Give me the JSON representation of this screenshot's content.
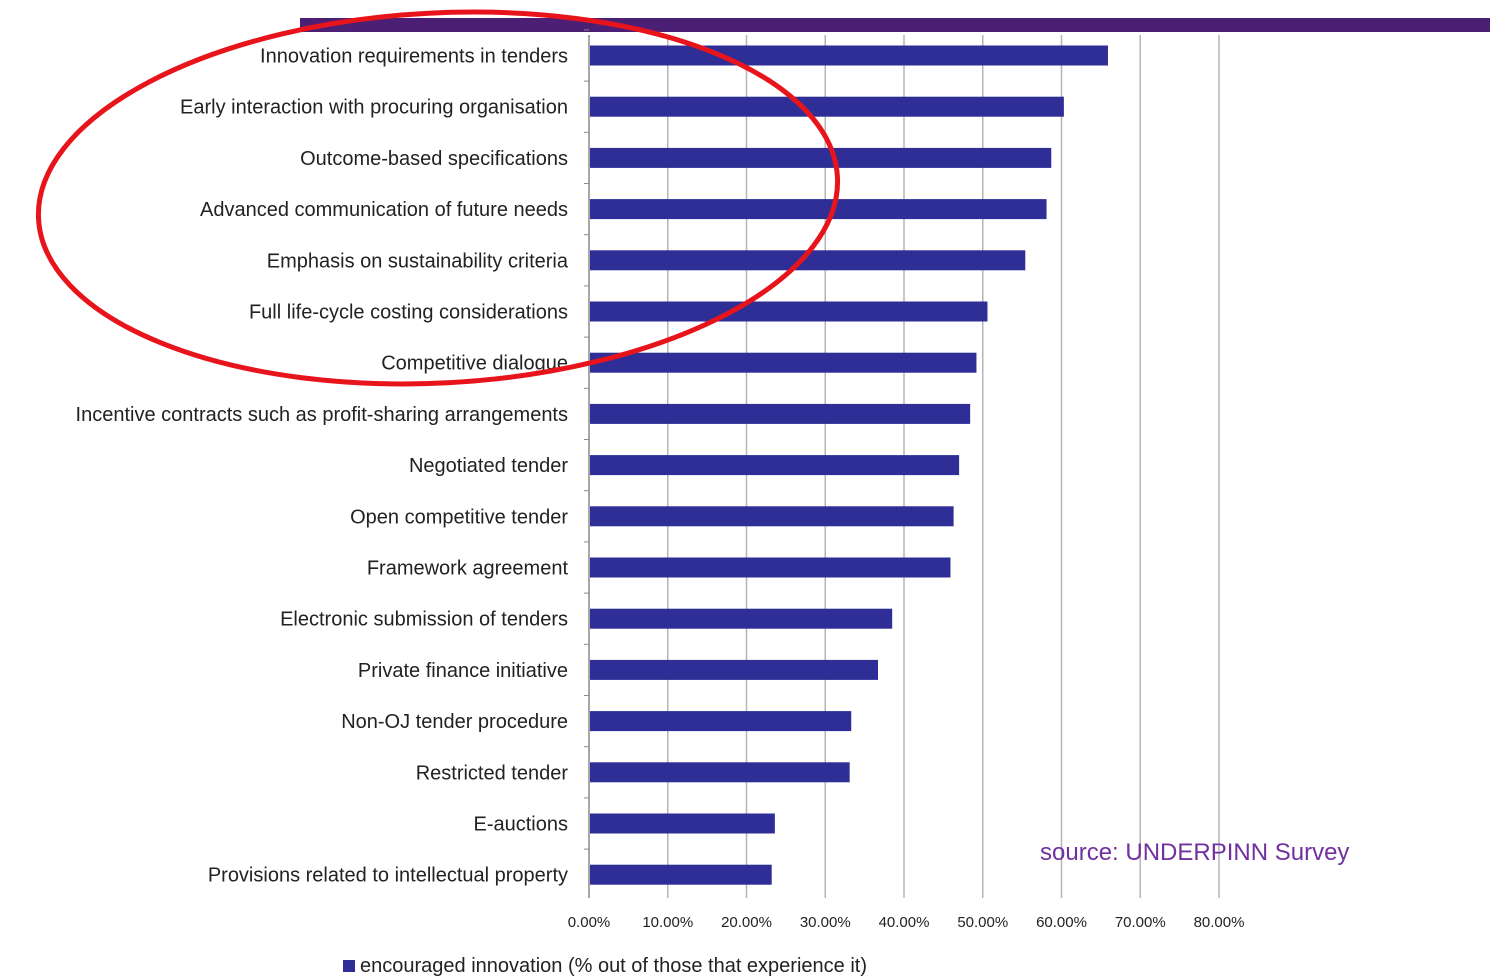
{
  "chart_data": {
    "type": "bar",
    "orientation": "horizontal",
    "categories": [
      "Innovation requirements in tenders",
      "Early interaction with procuring organisation",
      "Outcome-based specifications",
      "Advanced communication of future needs",
      "Emphasis on sustainability criteria",
      "Full life-cycle costing considerations",
      "Competitive dialogue",
      "Incentive contracts such as profit-sharing arrangements",
      "Negotiated tender",
      "Open competitive tender",
      "Framework agreement",
      "Electronic submission of tenders",
      "Private finance initiative",
      "Non-OJ tender procedure",
      "Restricted tender",
      "E-auctions",
      "Provisions related to intellectual property"
    ],
    "series": [
      {
        "name": "encouraged innovation (% out of those that experience it)",
        "values": [
          65.9,
          60.3,
          58.7,
          58.1,
          55.4,
          50.6,
          49.2,
          48.4,
          47.0,
          46.3,
          45.9,
          38.5,
          36.7,
          33.3,
          33.1,
          23.6,
          23.2
        ]
      }
    ],
    "xlim": [
      0,
      80
    ],
    "xticks": [
      "0.00%",
      "10.00%",
      "20.00%",
      "30.00%",
      "40.00%",
      "50.00%",
      "60.00%",
      "70.00%",
      "80.00%"
    ],
    "grid": "vertical",
    "legend_position": "bottom",
    "bar_color": "#2e2e96",
    "annotation": "source: UNDERPINN Survey",
    "annotation_color": "#7030a0",
    "highlight_color": "#e8141c",
    "top_band_color": "#4b1f73"
  }
}
